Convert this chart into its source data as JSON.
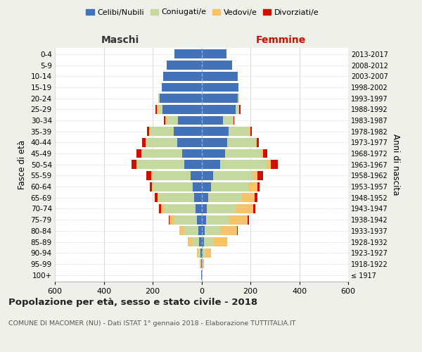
{
  "age_groups": [
    "100+",
    "95-99",
    "90-94",
    "85-89",
    "80-84",
    "75-79",
    "70-74",
    "65-69",
    "60-64",
    "55-59",
    "50-54",
    "45-49",
    "40-44",
    "35-39",
    "30-34",
    "25-29",
    "20-24",
    "15-19",
    "10-14",
    "5-9",
    "0-4"
  ],
  "birth_years": [
    "≤ 1917",
    "1918-1922",
    "1923-1927",
    "1928-1932",
    "1933-1937",
    "1938-1942",
    "1943-1947",
    "1948-1952",
    "1953-1957",
    "1958-1962",
    "1963-1967",
    "1968-1972",
    "1973-1977",
    "1978-1982",
    "1983-1987",
    "1988-1992",
    "1993-1997",
    "1998-2002",
    "2003-2007",
    "2008-2012",
    "2013-2017"
  ],
  "maschi_celibi": [
    1,
    2,
    5,
    10,
    12,
    20,
    25,
    30,
    35,
    45,
    70,
    80,
    100,
    115,
    95,
    160,
    170,
    162,
    158,
    143,
    112
  ],
  "maschi_coniugati": [
    0,
    3,
    10,
    30,
    60,
    90,
    125,
    145,
    162,
    155,
    190,
    162,
    125,
    95,
    48,
    18,
    8,
    0,
    0,
    0,
    0
  ],
  "maschi_vedovi": [
    0,
    2,
    5,
    15,
    18,
    20,
    15,
    5,
    5,
    5,
    5,
    5,
    5,
    5,
    5,
    5,
    0,
    0,
    0,
    0,
    0
  ],
  "maschi_divorziati": [
    0,
    0,
    0,
    0,
    2,
    5,
    10,
    10,
    10,
    20,
    22,
    18,
    14,
    7,
    5,
    5,
    0,
    0,
    0,
    0,
    0
  ],
  "femmine_celibi": [
    0,
    2,
    5,
    10,
    12,
    18,
    22,
    28,
    38,
    48,
    75,
    95,
    105,
    110,
    88,
    140,
    148,
    150,
    148,
    126,
    102
  ],
  "femmine_coniugati": [
    0,
    3,
    12,
    40,
    65,
    92,
    118,
    138,
    152,
    162,
    195,
    148,
    115,
    85,
    42,
    14,
    7,
    0,
    0,
    0,
    0
  ],
  "femmine_vedovi": [
    2,
    5,
    22,
    55,
    68,
    78,
    72,
    52,
    38,
    18,
    14,
    9,
    5,
    5,
    0,
    0,
    0,
    0,
    0,
    0,
    0
  ],
  "femmine_divorziati": [
    0,
    0,
    0,
    0,
    2,
    5,
    8,
    10,
    10,
    24,
    28,
    18,
    9,
    5,
    5,
    5,
    0,
    0,
    0,
    0,
    0
  ],
  "color_celibi": "#4472B8",
  "color_coniugati": "#C5D8A0",
  "color_vedovi": "#F5C36A",
  "color_divorziati": "#CC1100",
  "title": "Popolazione per età, sesso e stato civile - 2018",
  "subtitle": "COMUNE DI MACOMER (NU) - Dati ISTAT 1° gennaio 2018 - Elaborazione TUTTITALIA.IT",
  "xlabel_left": "Maschi",
  "xlabel_right": "Femmine",
  "ylabel_left": "Fasce di età",
  "ylabel_right": "Anni di nascita",
  "legend_labels": [
    "Celibi/Nubili",
    "Coniugati/e",
    "Vedovi/e",
    "Divorziati/e"
  ],
  "xlim": 600,
  "background_color": "#f0f0ea",
  "plot_bg_color": "#ffffff"
}
